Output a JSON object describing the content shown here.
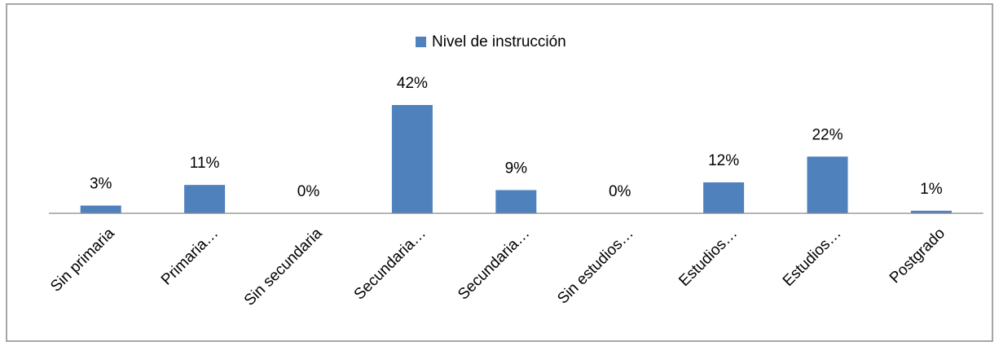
{
  "chart_data": {
    "type": "bar",
    "categories": [
      "Sin primaria",
      "Primaria…",
      "Sin secundaria",
      "Secundaria…",
      "Secundaria…",
      "Sin estudios…",
      "Estudios…",
      "Estudios…",
      "Postgrado"
    ],
    "series": [
      {
        "name": "Nivel de instrucción",
        "color": "#4f81bd",
        "values": [
          3,
          11,
          0,
          42,
          9,
          0,
          12,
          22,
          1
        ],
        "value_labels": [
          "3%",
          "11%",
          "0%",
          "42%",
          "9%",
          "0%",
          "12%",
          "22%",
          "1%"
        ]
      }
    ],
    "legend": "top"
  }
}
